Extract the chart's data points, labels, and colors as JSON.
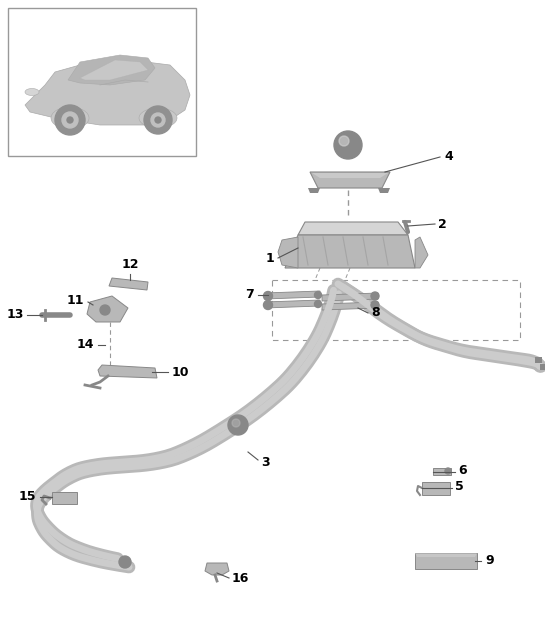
{
  "bg_color": "#ffffff",
  "part_color": "#b8b8b8",
  "part_color_dark": "#888888",
  "part_color_light": "#d5d5d5",
  "label_color": "#000000",
  "dashed_color": "#999999",
  "line_color": "#555555"
}
